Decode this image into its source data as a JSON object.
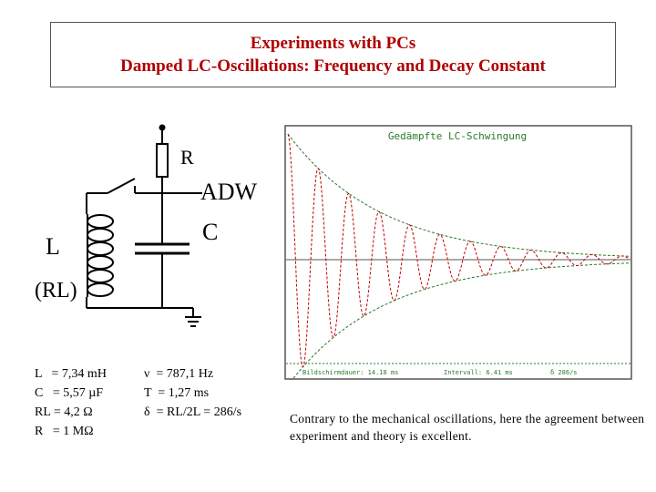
{
  "header": {
    "title_line1": "Experiments with PCs",
    "title_line2": "Damped LC-Oscillations: Frequency and Decay Constant"
  },
  "circuit": {
    "label_R": "R",
    "label_ADW": "ADW",
    "label_C": "C",
    "label_L": "L",
    "label_RL": "(RL)"
  },
  "params_left": [
    "L   = 7,34 mH",
    "C   = 5,57 µF",
    "RL = 4,2 Ω",
    "R   = 1 MΩ"
  ],
  "params_right": [
    "ν  = 787,1 Hz",
    "T  = 1,27 ms",
    "δ  = RL/2L = 286/s"
  ],
  "scope": {
    "title": "Gedämpfte LC-Schwingung",
    "status_left": "Bildschirmdauer: 14.18 ms",
    "status_mid": "Intervall: 6.41 ms",
    "status_right": "δ  286/s",
    "colors": {
      "signal": "#c00000",
      "envelope": "#2a7a2a",
      "text": "#2a7a2a",
      "frame": "#555555"
    }
  },
  "note": "Contrary to the mechanical oscillations, here the agreement between experiment and theory is excellent."
}
